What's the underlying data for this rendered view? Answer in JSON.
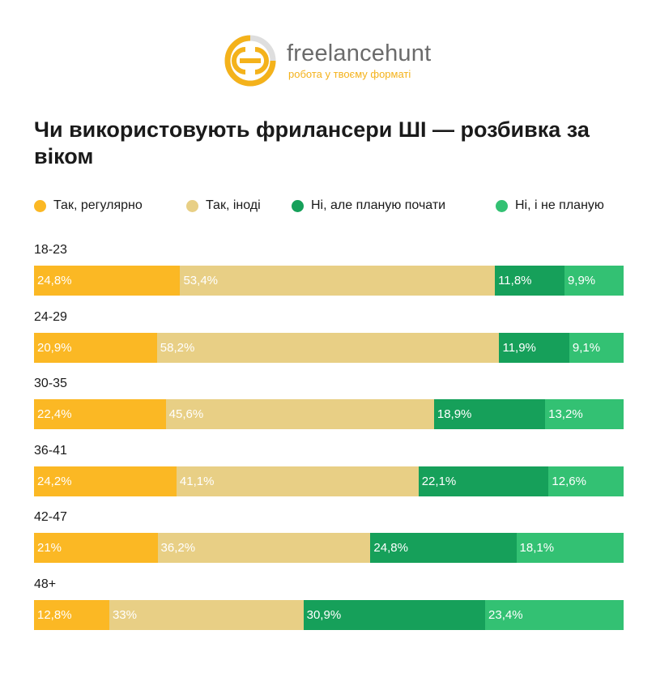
{
  "brand": {
    "name": "freelancehunt",
    "tagline": "робота у твоєму форматі",
    "colors": {
      "primary": "#f4b21b",
      "text": "#6b6b6b"
    }
  },
  "chart_data": {
    "type": "bar",
    "orientation": "horizontal",
    "stacked": true,
    "normalized_percent": true,
    "title": "Чи використовують фрилансери ШІ — розбивка за віком",
    "categories": [
      "18-23",
      "24-29",
      "30-35",
      "36-41",
      "42-47",
      "48+"
    ],
    "series": [
      {
        "name": "Так, регулярно",
        "color": "#fbb824",
        "values": [
          24.8,
          20.9,
          22.4,
          24.2,
          21,
          12.8
        ],
        "labels": [
          "24,8%",
          "20,9%",
          "22,4%",
          "24,2%",
          "21%",
          "12,8%"
        ]
      },
      {
        "name": "Так, іноді",
        "color": "#e8cf85",
        "values": [
          53.4,
          58.2,
          45.6,
          41.1,
          36.2,
          33
        ],
        "labels": [
          "53,4%",
          "58,2%",
          "45,6%",
          "41,1%",
          "36,2%",
          "33%"
        ]
      },
      {
        "name": "Ні, але планую почати",
        "color": "#16a05a",
        "values": [
          11.8,
          11.9,
          18.9,
          22.1,
          24.8,
          30.9
        ],
        "labels": [
          "11,8%",
          "11,9%",
          "18,9%",
          "22,1%",
          "24,8%",
          "30,9%"
        ]
      },
      {
        "name": "Ні, і не планую",
        "color": "#33c173",
        "values": [
          9.9,
          9.1,
          13.2,
          12.6,
          18.1,
          23.4
        ],
        "labels": [
          "9,9%",
          "9,1%",
          "13,2%",
          "12,6%",
          "18,1%",
          "23,4%"
        ]
      }
    ],
    "legend_position": "top",
    "grid": false
  }
}
